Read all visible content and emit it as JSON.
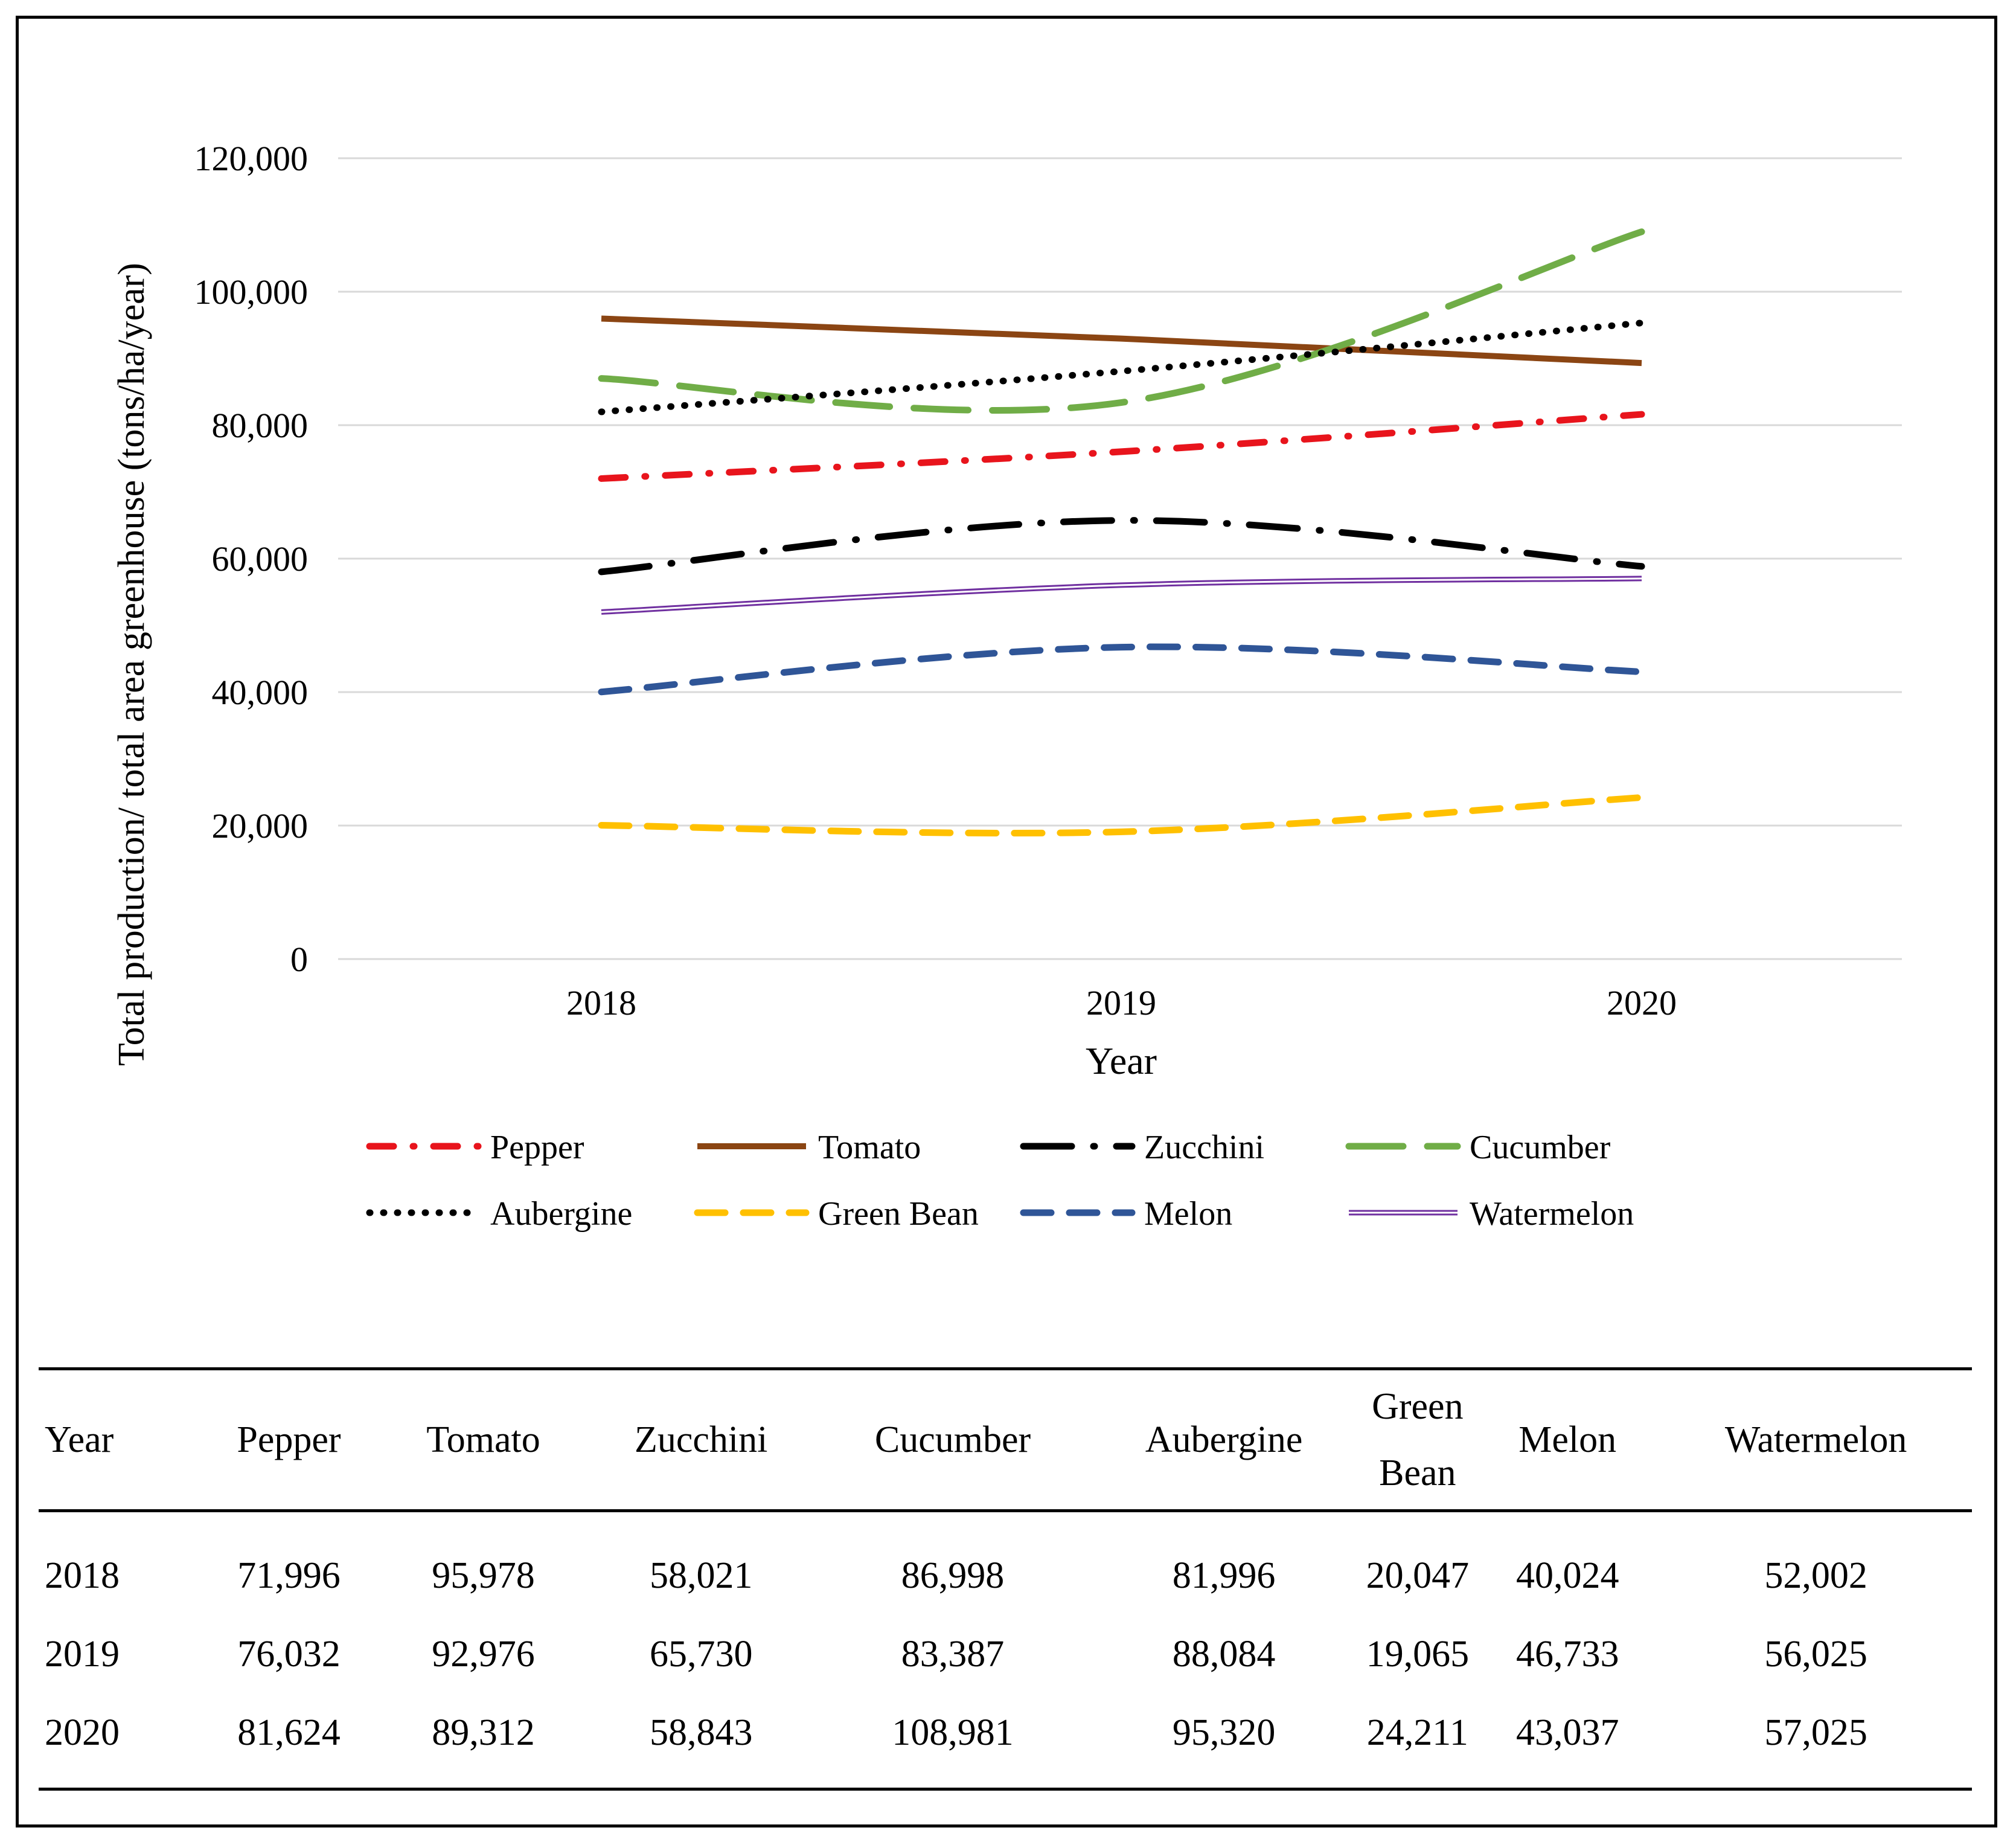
{
  "chart_data": {
    "type": "line",
    "title": "",
    "xlabel": "Year",
    "ylabel": "Total production/ total area greenhouse (tons/ha/year)",
    "x": [
      "2018",
      "2019",
      "2020"
    ],
    "ylim": [
      0,
      120000
    ],
    "yticks": [
      0,
      20000,
      40000,
      60000,
      80000,
      100000,
      120000
    ],
    "ytick_labels": [
      "0",
      "20,000",
      "40,000",
      "60,000",
      "80,000",
      "100,000",
      "120,000"
    ],
    "grid": true,
    "legend_position": "bottom",
    "series": [
      {
        "name": "Pepper",
        "values": [
          71996,
          76032,
          81624
        ],
        "color": "#e8141c",
        "style": "dash-dot"
      },
      {
        "name": "Tomato",
        "values": [
          95978,
          92976,
          89312
        ],
        "color": "#8b4513",
        "style": "solid"
      },
      {
        "name": "Zucchini",
        "values": [
          58021,
          65730,
          58843
        ],
        "color": "#000000",
        "style": "long-dash-dot"
      },
      {
        "name": "Cucumber",
        "values": [
          86998,
          83387,
          108981
        ],
        "color": "#70ad47",
        "style": "long-dash"
      },
      {
        "name": "Aubergine",
        "values": [
          81996,
          88084,
          95320
        ],
        "color": "#000000",
        "style": "dot"
      },
      {
        "name": "Green Bean",
        "values": [
          20047,
          19065,
          24211
        ],
        "color": "#ffc000",
        "style": "dash"
      },
      {
        "name": "Melon",
        "values": [
          40024,
          46733,
          43037
        ],
        "color": "#2f5597",
        "style": "dash"
      },
      {
        "name": "Watermelon",
        "values": [
          52002,
          56025,
          57025
        ],
        "color": "#7030a0",
        "style": "double"
      }
    ]
  },
  "table": {
    "headers": [
      "Year",
      "Pepper",
      "Tomato",
      "Zucchini",
      "Cucumber",
      "Aubergine",
      "Green Bean",
      "Melon",
      "Watermelon"
    ],
    "rows": [
      [
        "2018",
        "71,996",
        "95,978",
        "58,021",
        "86,998",
        "81,996",
        "20,047",
        "40,024",
        "52,002"
      ],
      [
        "2019",
        "76,032",
        "92,976",
        "65,730",
        "83,387",
        "88,084",
        "19,065",
        "46,733",
        "56,025"
      ],
      [
        "2020",
        "81,624",
        "89,312",
        "58,843",
        "108,981",
        "95,320",
        "24,211",
        "43,037",
        "57,025"
      ]
    ]
  }
}
